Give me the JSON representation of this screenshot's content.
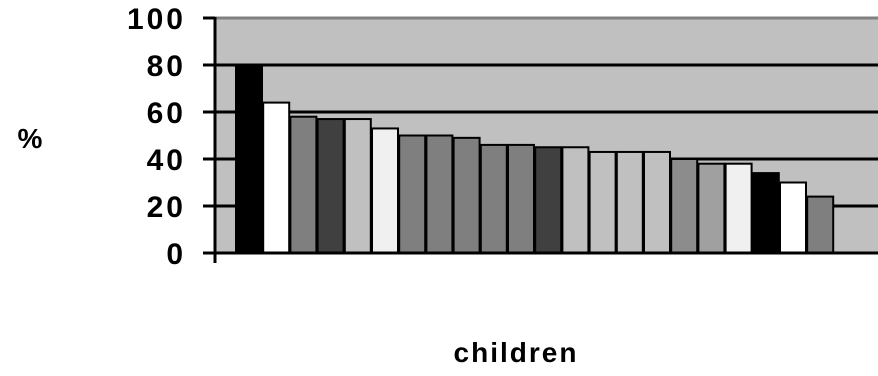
{
  "chart_data": {
    "type": "bar",
    "title": "",
    "xlabel": "children",
    "ylabel": "%",
    "ylim": [
      0,
      100
    ],
    "yticks": [
      0,
      20,
      40,
      60,
      80,
      100
    ],
    "grid": true,
    "legend": "none",
    "plot_background": "#c0c0c0",
    "values": [
      80,
      64,
      58,
      57,
      57,
      53,
      50,
      50,
      49,
      46,
      46,
      45,
      45,
      43,
      43,
      43,
      40,
      38,
      38,
      34,
      30,
      24
    ],
    "colors": [
      "#000000",
      "#ffffff",
      "#7f7f7f",
      "#404040",
      "#c0c0c0",
      "#f0f0f0",
      "#7f7f7f",
      "#7f7f7f",
      "#7f7f7f",
      "#7f7f7f",
      "#7f7f7f",
      "#404040",
      "#c0c0c0",
      "#c0c0c0",
      "#c0c0c0",
      "#c0c0c0",
      "#8c8c8c",
      "#a0a0a0",
      "#f0f0f0",
      "#000000",
      "#ffffff",
      "#7f7f7f"
    ]
  }
}
